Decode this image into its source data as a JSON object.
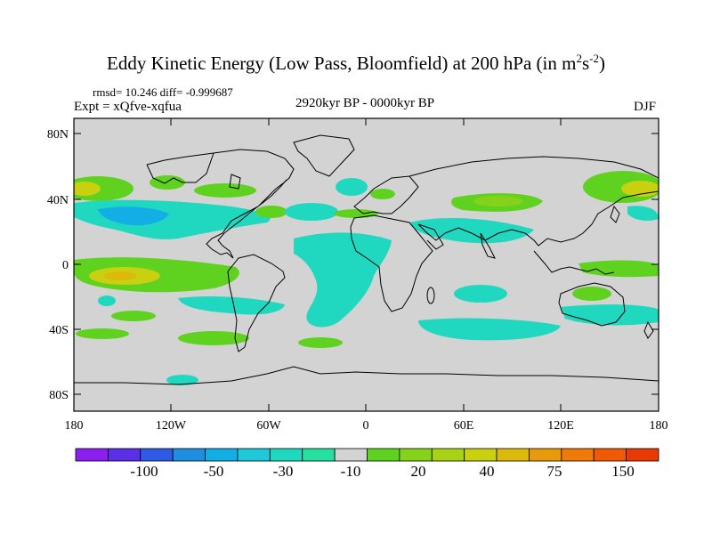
{
  "title": {
    "main": "Eddy Kinetic Energy (Low Pass, Bloomfield) at 200 hPa (in m",
    "sup1": "2",
    "mid": "s",
    "sup2": "-2",
    "end": ")"
  },
  "stats": "rmsd= 10.246 diff= -0.999687",
  "experiment": "Expt = xQfve-xqfua",
  "period": "2920kyr BP - 0000kyr BP",
  "season": "DJF",
  "map": {
    "lat_ticks": [
      "80N",
      "40N",
      "0",
      "40S",
      "80S"
    ],
    "lon_ticks": [
      "180",
      "120W",
      "60W",
      "0",
      "60E",
      "120E",
      "180"
    ],
    "land_color": "#d3d3d3"
  },
  "colorbar": {
    "labels": [
      "-100",
      "-50",
      "-30",
      "-10",
      "20",
      "40",
      "75",
      "150"
    ],
    "colors": [
      "#8b1ff0",
      "#5a2fe6",
      "#2f5ae6",
      "#1e8fe0",
      "#14aee6",
      "#1ec8d8",
      "#20d8c0",
      "#26e0a0",
      "#d3d3d3",
      "#5fd21f",
      "#86d21a",
      "#a8d214",
      "#c8d010",
      "#dcba0c",
      "#e89a0a",
      "#f07a08",
      "#f05a06",
      "#e83a04"
    ]
  },
  "regions": [
    {
      "name": "npac-west-positive",
      "value": "20"
    },
    {
      "name": "eq-pac-positive",
      "value": "40"
    },
    {
      "name": "npac-negative",
      "value": "-30"
    },
    {
      "name": "eurasia-positive",
      "value": "20"
    },
    {
      "name": "atlantic-negative",
      "value": "-10"
    },
    {
      "name": "southern-ocean-negative",
      "value": "-10"
    }
  ]
}
